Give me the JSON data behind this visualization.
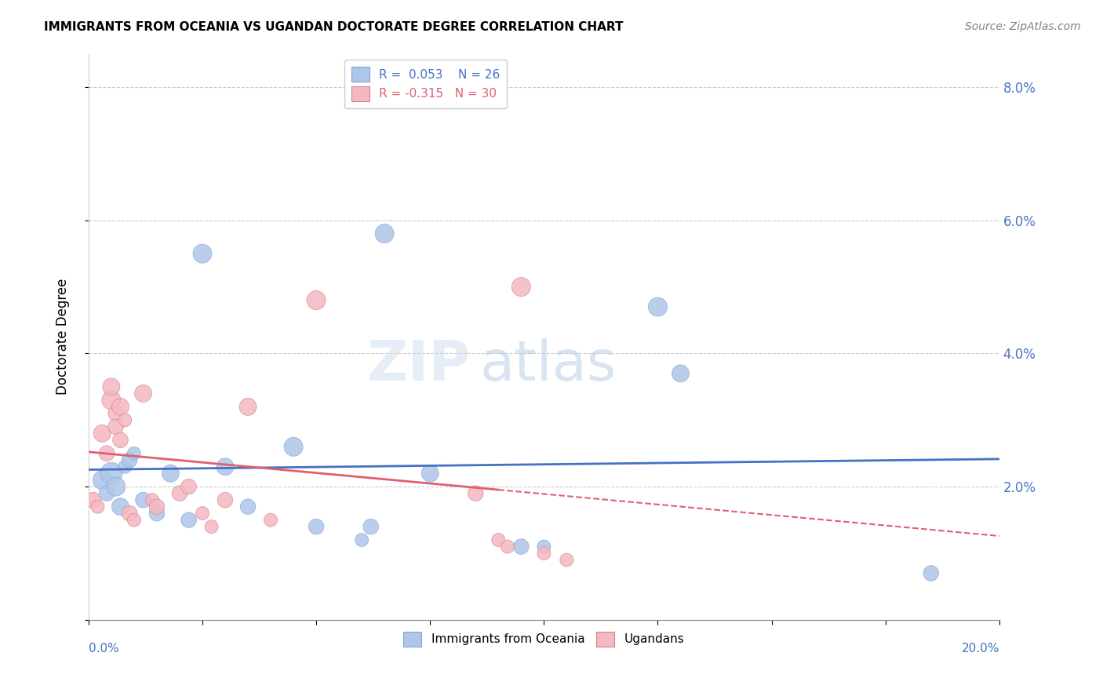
{
  "title": "IMMIGRANTS FROM OCEANIA VS UGANDAN DOCTORATE DEGREE CORRELATION CHART",
  "source": "Source: ZipAtlas.com",
  "ylabel": "Doctorate Degree",
  "xmin": 0.0,
  "xmax": 20.0,
  "ymin": 0.0,
  "ymax": 8.5,
  "blue_color": "#aec6e8",
  "pink_color": "#f4b8c1",
  "blue_edge_color": "#7aa8d4",
  "pink_edge_color": "#d48090",
  "blue_line_color": "#4472c4",
  "pink_line_color": "#e06070",
  "grid_color": "#cccccc",
  "spine_color": "#888888",
  "blue_x": [
    0.3,
    0.4,
    0.5,
    0.6,
    0.7,
    0.8,
    0.9,
    1.0,
    1.2,
    1.5,
    1.8,
    2.2,
    2.5,
    3.0,
    3.5,
    4.5,
    5.0,
    6.0,
    6.2,
    6.5,
    7.5,
    9.5,
    10.0,
    12.5,
    13.0,
    18.5
  ],
  "blue_y": [
    2.1,
    1.9,
    2.2,
    2.0,
    1.7,
    2.3,
    2.4,
    2.5,
    1.8,
    1.6,
    2.2,
    1.5,
    5.5,
    2.3,
    1.7,
    2.6,
    1.4,
    1.2,
    1.4,
    5.8,
    2.2,
    1.1,
    1.1,
    4.7,
    3.7,
    0.7
  ],
  "blue_sizes": [
    300,
    200,
    400,
    300,
    250,
    150,
    200,
    150,
    200,
    200,
    250,
    200,
    300,
    250,
    200,
    300,
    200,
    150,
    200,
    300,
    250,
    200,
    150,
    300,
    250,
    200
  ],
  "pink_x": [
    0.1,
    0.2,
    0.3,
    0.4,
    0.5,
    0.5,
    0.6,
    0.6,
    0.7,
    0.7,
    0.8,
    0.9,
    1.0,
    1.2,
    1.4,
    1.5,
    2.0,
    2.2,
    2.5,
    2.7,
    3.0,
    3.5,
    4.0,
    5.0,
    8.5,
    9.0,
    9.2,
    9.5,
    10.0,
    10.5
  ],
  "pink_y": [
    1.8,
    1.7,
    2.8,
    2.5,
    3.3,
    3.5,
    3.1,
    2.9,
    3.2,
    2.7,
    3.0,
    1.6,
    1.5,
    3.4,
    1.8,
    1.7,
    1.9,
    2.0,
    1.6,
    1.4,
    1.8,
    3.2,
    1.5,
    4.8,
    1.9,
    1.2,
    1.1,
    5.0,
    1.0,
    0.9
  ],
  "pink_sizes": [
    200,
    150,
    250,
    200,
    300,
    250,
    200,
    200,
    250,
    200,
    150,
    200,
    150,
    250,
    150,
    200,
    200,
    200,
    150,
    150,
    200,
    250,
    150,
    300,
    200,
    150,
    150,
    300,
    150,
    150
  ],
  "pink_dash_start": 9.0,
  "yticks": [
    0,
    2,
    4,
    6,
    8
  ],
  "ytick_labels": [
    "",
    "2.0%",
    "4.0%",
    "6.0%",
    "8.0%"
  ],
  "xticks": [
    0.0,
    2.5,
    5.0,
    7.5,
    10.0,
    12.5,
    15.0,
    17.5,
    20.0
  ],
  "legend1_labels": [
    "R =  0.053    N = 26",
    "R = -0.315   N = 30"
  ],
  "legend2_labels": [
    "Immigrants from Oceania",
    "Ugandans"
  ]
}
